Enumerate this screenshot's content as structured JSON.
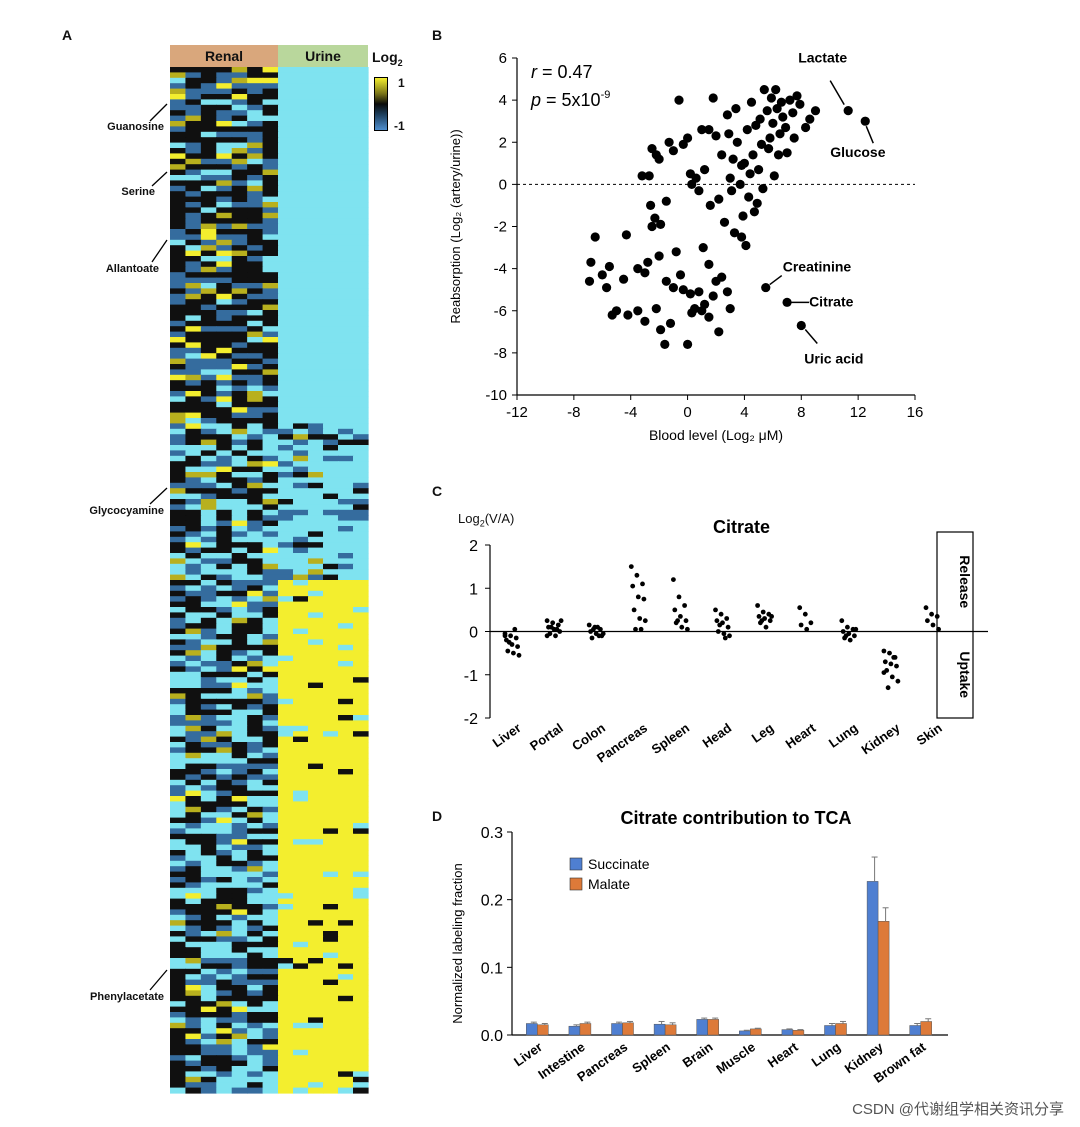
{
  "panels": {
    "a": "A",
    "b": "B",
    "c": "C",
    "d": "D"
  },
  "watermark": "CSDN @代谢组学相关资讯分享",
  "colors": {
    "renal": "#d9a77c",
    "urine": "#b9d79c",
    "cyan": "#7fe3f0",
    "yellow": "#f3ee2e",
    "blue": "#356c9e",
    "black": "#101010",
    "olive": "#b8b01e",
    "succinate": "#4f7fd1",
    "malate": "#dd7a39"
  },
  "heatmap": {
    "col_headers": [
      "Renal",
      "Urine"
    ],
    "scale_title": "Log",
    "scale_sub": "2",
    "scale_max": "1",
    "scale_min": "-1",
    "row_labels": [
      "Guanosine",
      "Serine",
      "Allantoate",
      "Glycocyamine",
      "Phenylacetate"
    ]
  },
  "chart_data": [
    {
      "type": "scatter",
      "panel": "B",
      "xlabel": "Blood level (Log₂ μM)",
      "ylabel": "Reabsorption (Log₂ (artery/urine))",
      "xlim": [
        -12,
        16
      ],
      "ylim": [
        -10,
        6
      ],
      "xticks": [
        "-12",
        "-8",
        "-4",
        "0",
        "4",
        "8",
        "12",
        "16"
      ],
      "yticks": [
        "6",
        "4",
        "2",
        "0",
        "-2",
        "-4",
        "-6",
        "-8",
        "-10"
      ],
      "stat_r_symbol": "r",
      "stat_r_value": " = 0.47",
      "stat_p_symbol": "p",
      "stat_p_value": " = 5x10",
      "stat_p_exp": "-9",
      "reference_line_y": 0,
      "annotations": [
        {
          "text": "Lactate",
          "x": 11.3,
          "y": 3.5
        },
        {
          "text": "Glucose",
          "x": 12.5,
          "y": 3.0
        },
        {
          "text": "Creatinine",
          "x": 5.5,
          "y": -4.9
        },
        {
          "text": "Citrate",
          "x": 7.0,
          "y": -5.6
        },
        {
          "text": "Uric acid",
          "x": 8.0,
          "y": -6.7
        }
      ],
      "points": [
        [
          -6.5,
          -2.5
        ],
        [
          -6.8,
          -3.7
        ],
        [
          -6.9,
          -4.6
        ],
        [
          -6,
          -4.3
        ],
        [
          -5.5,
          -3.9
        ],
        [
          -5.7,
          -4.9
        ],
        [
          -5.3,
          -6.2
        ],
        [
          -5,
          -6
        ],
        [
          -4.5,
          -4.5
        ],
        [
          -4.3,
          -2.4
        ],
        [
          -4.2,
          -6.2
        ],
        [
          -3.5,
          -4
        ],
        [
          -3,
          -4.2
        ],
        [
          -3.5,
          -6
        ],
        [
          -3,
          -6.5
        ],
        [
          -2.8,
          -3.7
        ],
        [
          -2.6,
          -1
        ],
        [
          -2.5,
          -2
        ],
        [
          -2.3,
          -1.6
        ],
        [
          -2,
          -3.4
        ],
        [
          -2.2,
          -5.9
        ],
        [
          -1.9,
          -6.9
        ],
        [
          -1.6,
          -7.6
        ],
        [
          -1.5,
          -4.6
        ],
        [
          -1.2,
          -6.6
        ],
        [
          -1,
          -4.9
        ],
        [
          -0.8,
          -3.2
        ],
        [
          -0.5,
          -4.3
        ],
        [
          -0.3,
          -5
        ],
        [
          0,
          -7.6
        ],
        [
          0.2,
          -5.2
        ],
        [
          0.3,
          -6.1
        ],
        [
          0.5,
          -5.9
        ],
        [
          0.8,
          -5.1
        ],
        [
          1,
          -6
        ],
        [
          1.2,
          -5.7
        ],
        [
          1.5,
          -6.3
        ],
        [
          1.8,
          -5.3
        ],
        [
          2,
          -4.6
        ],
        [
          2.2,
          -7
        ],
        [
          2.4,
          -4.4
        ],
        [
          2.8,
          -5.1
        ],
        [
          3,
          -5.9
        ],
        [
          1.5,
          -3.8
        ],
        [
          1.1,
          -3
        ],
        [
          -3.2,
          0.4
        ],
        [
          -2.7,
          0.4
        ],
        [
          -2.5,
          1.7
        ],
        [
          -2.2,
          1.4
        ],
        [
          -2,
          1.2
        ],
        [
          -1.9,
          -1.9
        ],
        [
          -1.5,
          -0.8
        ],
        [
          -1.3,
          2
        ],
        [
          -1,
          1.6
        ],
        [
          -0.6,
          4
        ],
        [
          -0.3,
          1.9
        ],
        [
          0,
          2.2
        ],
        [
          0.2,
          0.5
        ],
        [
          0.3,
          0
        ],
        [
          0.6,
          0.3
        ],
        [
          0.8,
          -0.3
        ],
        [
          1,
          2.6
        ],
        [
          1.2,
          0.7
        ],
        [
          1.5,
          2.6
        ],
        [
          1.6,
          -1
        ],
        [
          1.8,
          4.1
        ],
        [
          2,
          2.3
        ],
        [
          2.2,
          -0.7
        ],
        [
          2.4,
          1.4
        ],
        [
          2.6,
          -1.8
        ],
        [
          2.8,
          3.3
        ],
        [
          3,
          0.3
        ],
        [
          3.1,
          -0.3
        ],
        [
          3.2,
          1.2
        ],
        [
          3.3,
          -2.3
        ],
        [
          3.4,
          3.6
        ],
        [
          3.5,
          2
        ],
        [
          3.7,
          0
        ],
        [
          3.8,
          -2.5
        ],
        [
          3.9,
          -1.5
        ],
        [
          4,
          1
        ],
        [
          4.1,
          -2.9
        ],
        [
          4.2,
          2.6
        ],
        [
          4.3,
          -0.6
        ],
        [
          4.4,
          0.5
        ],
        [
          4.5,
          3.9
        ],
        [
          4.6,
          1.4
        ],
        [
          4.7,
          -1.3
        ],
        [
          4.8,
          2.8
        ],
        [
          5,
          0.7
        ],
        [
          5.1,
          3.1
        ],
        [
          5.2,
          1.9
        ],
        [
          5.3,
          -0.2
        ],
        [
          5.4,
          4.5
        ],
        [
          5.6,
          3.5
        ],
        [
          5.8,
          2.2
        ],
        [
          5.9,
          4.1
        ],
        [
          6,
          2.9
        ],
        [
          6.1,
          0.4
        ],
        [
          6.2,
          4.5
        ],
        [
          6.3,
          3.6
        ],
        [
          6.4,
          1.4
        ],
        [
          6.5,
          2.4
        ],
        [
          6.6,
          3.9
        ],
        [
          6.7,
          3.2
        ],
        [
          6.9,
          2.7
        ],
        [
          7,
          1.5
        ],
        [
          7.2,
          4
        ],
        [
          7.4,
          3.4
        ],
        [
          7.5,
          2.2
        ],
        [
          7.7,
          4.2
        ],
        [
          7.9,
          3.8
        ],
        [
          8.3,
          2.7
        ],
        [
          8.6,
          3.1
        ],
        [
          9,
          3.5
        ],
        [
          3.8,
          0.9
        ],
        [
          2.9,
          2.4
        ],
        [
          5.7,
          1.7
        ],
        [
          4.9,
          -0.9
        ]
      ]
    },
    {
      "type": "strip",
      "panel": "C",
      "title": "Citrate",
      "ylabel": "Log",
      "ylabel_sub": "2",
      "ylabel_suffix": "(V/A)",
      "ylim": [
        -2,
        2
      ],
      "yticks": [
        "2",
        "1",
        "0",
        "-1",
        "-2"
      ],
      "side_labels": [
        "Release",
        "Uptake"
      ],
      "categories": [
        "Liver",
        "Portal",
        "Colon",
        "Pancreas",
        "Spleen",
        "Head",
        "Leg",
        "Heart",
        "Lung",
        "Kidney",
        "Skin"
      ],
      "values": [
        [
          -0.05,
          -0.1,
          -0.15,
          -0.2,
          -0.3,
          -0.35,
          -0.45,
          -0.5,
          -0.55,
          -0.25,
          0.05,
          -0.1
        ],
        [
          0.25,
          0.2,
          0.15,
          0.1,
          0.05,
          0,
          -0.05,
          -0.1,
          0.25,
          0.1,
          0.05,
          -0.1
        ],
        [
          0.15,
          0.1,
          0.05,
          0,
          -0.05,
          -0.1,
          -0.15,
          0.1,
          -0.05,
          0.05,
          -0.1
        ],
        [
          1.5,
          1.3,
          1.1,
          1.05,
          0.8,
          0.75,
          0.5,
          0.3,
          0.25,
          0.05,
          0.05
        ],
        [
          1.2,
          0.8,
          0.6,
          0.5,
          0.35,
          0.25,
          0.2,
          0.1,
          0.05,
          0.25
        ],
        [
          0.5,
          0.4,
          0.3,
          0.25,
          0.2,
          0.1,
          0,
          -0.05,
          -0.1,
          0.15,
          -0.15
        ],
        [
          0.6,
          0.45,
          0.4,
          0.35,
          0.3,
          0.25,
          0.2,
          0.1,
          0.35,
          0.25
        ],
        [
          0.55,
          0.4,
          0.2,
          0.15,
          0.05
        ],
        [
          0.25,
          0.1,
          0.05,
          0,
          -0.05,
          -0.1,
          -0.15,
          -0.2,
          0.05,
          -0.1
        ],
        [
          -0.45,
          -0.5,
          -0.6,
          -0.7,
          -0.75,
          -0.8,
          -0.9,
          -1.05,
          -1.15,
          -1.3,
          -0.6,
          -0.95
        ],
        [
          0.55,
          0.4,
          0.35,
          0.25,
          0.15,
          0.05
        ]
      ]
    },
    {
      "type": "bar",
      "panel": "D",
      "title": "Citrate contribution to TCA",
      "ylabel": "Normalized labeling fraction",
      "ylim": [
        0,
        0.3
      ],
      "yticks": [
        "0.3",
        "0.2",
        "0.1",
        "0.0"
      ],
      "categories": [
        "Liver",
        "Intestine",
        "Pancreas",
        "Spleen",
        "Brain",
        "Muscle",
        "Heart",
        "Lung",
        "Kidney",
        "Brown fat"
      ],
      "series": [
        {
          "name": "Succinate",
          "values": [
            0.017,
            0.013,
            0.017,
            0.016,
            0.023,
            0.006,
            0.008,
            0.014,
            0.227,
            0.014
          ],
          "errors": [
            0.002,
            0.002,
            0.002,
            0.004,
            0.002,
            0.001,
            0.001,
            0.003,
            0.036,
            0.003
          ]
        },
        {
          "name": "Malate",
          "values": [
            0.015,
            0.017,
            0.018,
            0.015,
            0.023,
            0.009,
            0.007,
            0.017,
            0.168,
            0.02
          ],
          "errors": [
            0.002,
            0.002,
            0.002,
            0.003,
            0.002,
            0.001,
            0.001,
            0.003,
            0.02,
            0.004
          ]
        }
      ]
    }
  ]
}
